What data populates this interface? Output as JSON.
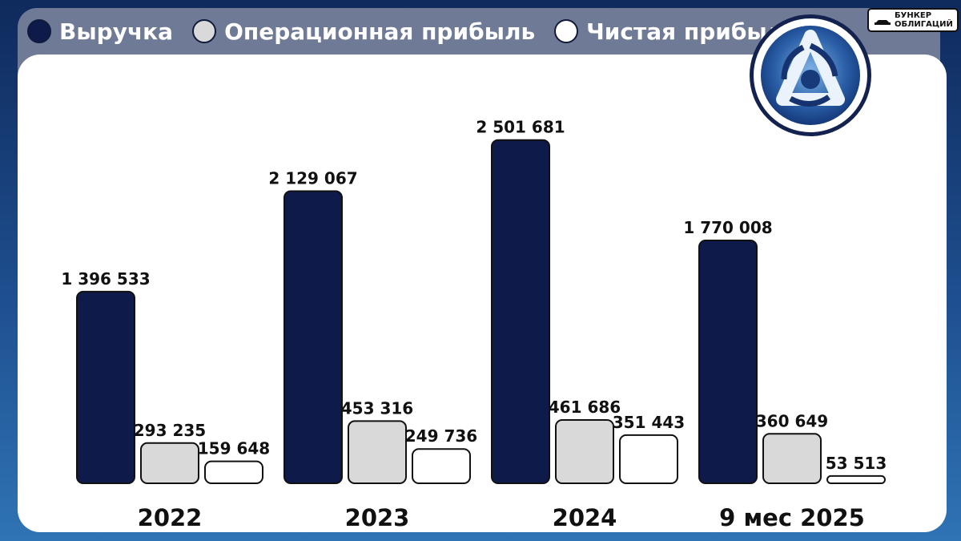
{
  "legend": [
    {
      "label": "Выручка",
      "color": "#0e1b4a"
    },
    {
      "label": "Операционная прибыль",
      "color": "#d9d9d9"
    },
    {
      "label": "Чистая прибыль",
      "color": "#ffffff"
    }
  ],
  "brand": {
    "line1": "БУНКЕР",
    "line2": "ОБЛИГАЦИЙ",
    "icon": "bunker-icon"
  },
  "logo": {
    "icon": "atom-emblem-icon"
  },
  "chart_data": {
    "type": "bar",
    "categories": [
      "2022",
      "2023",
      "2024",
      "9 мес 2025"
    ],
    "series": [
      {
        "name": "Выручка",
        "values": [
          1396533,
          2129067,
          2501681,
          1770008
        ],
        "labels": [
          "1 396 533",
          "2 129 067",
          "2 501 681",
          "1 770 008"
        ],
        "color": "#0e1b4a"
      },
      {
        "name": "Операционная прибыль",
        "values": [
          293235,
          453316,
          461686,
          360649
        ],
        "labels": [
          "293 235",
          "453 316",
          "461 686",
          "360 649"
        ],
        "color": "#d9d9d9"
      },
      {
        "name": "Чистая прибыль",
        "values": [
          159648,
          249736,
          351443,
          53513
        ],
        "labels": [
          "159 648",
          "249 736",
          "351 443",
          "53 513"
        ],
        "color": "#ffffff"
      }
    ],
    "ylim": [
      0,
      2500000
    ],
    "grid": false,
    "legend_position": "top-left"
  }
}
